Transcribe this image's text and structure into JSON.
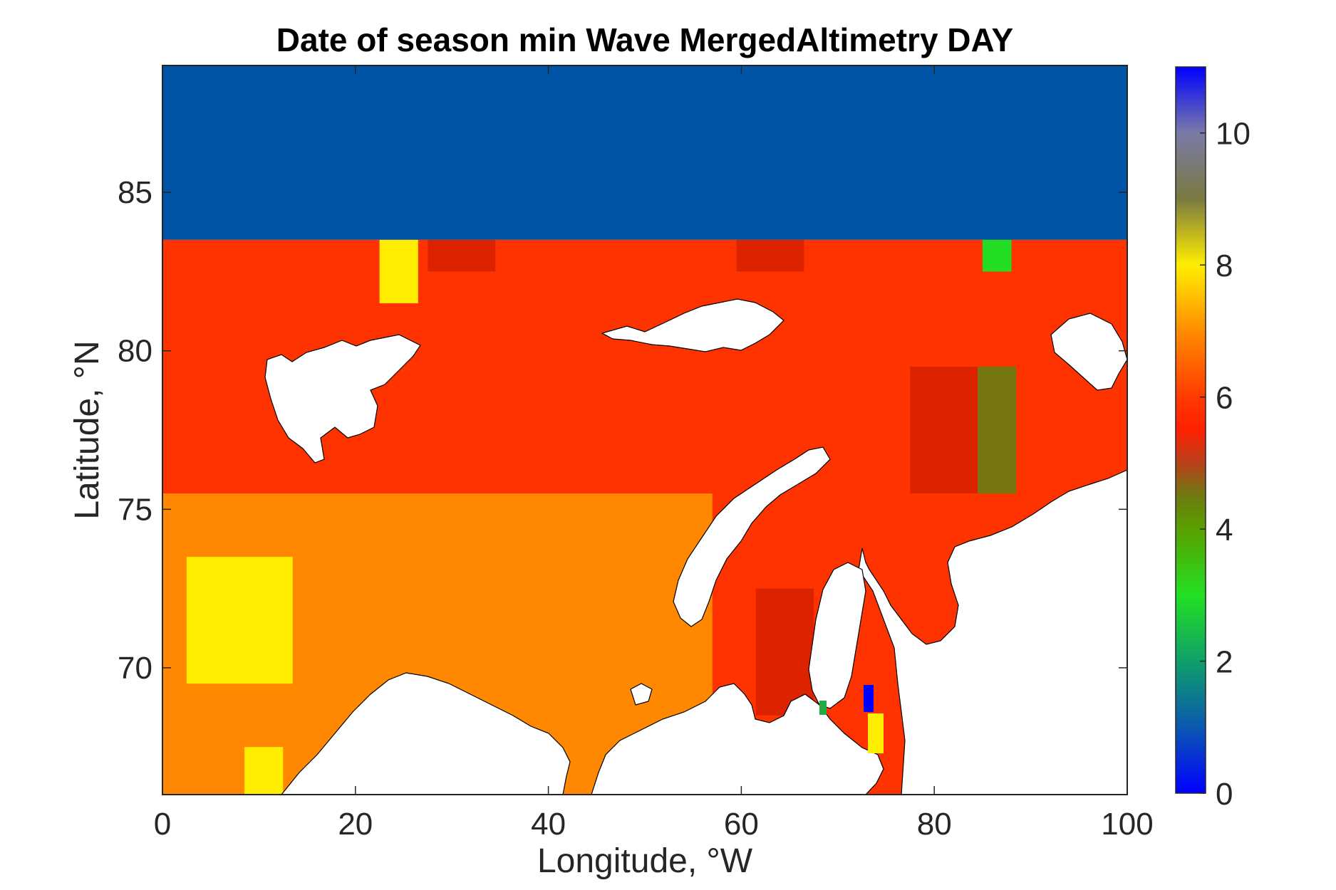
{
  "chart_data": {
    "type": "heatmap",
    "title": "Date of season min Wave MergedAltimetry DAY",
    "xlabel": "Longitude, °W",
    "ylabel": "Latitude, °N",
    "xlim": [
      0,
      100
    ],
    "ylim": [
      66,
      89
    ],
    "x_ticks": [
      0,
      20,
      40,
      60,
      80,
      100
    ],
    "y_ticks": [
      70,
      75,
      80,
      85
    ],
    "colorbar": {
      "range": [
        0,
        11
      ],
      "ticks": [
        0,
        2,
        4,
        6,
        8,
        10
      ],
      "stops": [
        {
          "value": 0,
          "color": "#0000ff"
        },
        {
          "value": 1,
          "color": "#0a58b0"
        },
        {
          "value": 2,
          "color": "#0fa068"
        },
        {
          "value": 3,
          "color": "#22e022"
        },
        {
          "value": 4,
          "color": "#5aa000"
        },
        {
          "value": 4.5,
          "color": "#6e7a10"
        },
        {
          "value": 5,
          "color": "#b8401a"
        },
        {
          "value": 5.5,
          "color": "#ff2000"
        },
        {
          "value": 6,
          "color": "#ff3a00"
        },
        {
          "value": 7,
          "color": "#ff8c00"
        },
        {
          "value": 8,
          "color": "#ffee00"
        },
        {
          "value": 9,
          "color": "#7a7a40"
        },
        {
          "value": 10,
          "color": "#7a7aa8"
        },
        {
          "value": 11,
          "color": "#0000ff"
        }
      ]
    },
    "regions": [
      {
        "name": "north-band",
        "value": 1,
        "color": "#0054a8",
        "x": [
          0,
          100
        ],
        "y": [
          83.5,
          89
        ]
      },
      {
        "name": "central-sea",
        "value": 6,
        "color": "#ff3300",
        "x": [
          0,
          100
        ],
        "y": [
          66,
          83.5
        ]
      },
      {
        "name": "southwest-sea",
        "value": 7,
        "color": "#ff8800",
        "x": [
          0,
          57
        ],
        "y": [
          66,
          75.5
        ]
      },
      {
        "name": "southwest-patch",
        "value": 8,
        "color": "#ffee00",
        "x": [
          2.5,
          13.5
        ],
        "y": [
          69.5,
          73.5
        ]
      },
      {
        "name": "south-patch",
        "value": 8,
        "color": "#ffee00",
        "x": [
          8.5,
          12.5
        ],
        "y": [
          66,
          67.5
        ]
      },
      {
        "name": "north-patch",
        "value": 8,
        "color": "#ffee00",
        "x": [
          22.5,
          26.5
        ],
        "y": [
          81.5,
          83.5
        ]
      },
      {
        "name": "north-east-patch",
        "value": 3,
        "color": "#22dd22",
        "x": [
          85,
          88
        ],
        "y": [
          82.5,
          83.5
        ]
      },
      {
        "name": "east-olive",
        "value": 4.5,
        "color": "#777711",
        "x": [
          81.5,
          88.5
        ],
        "y": [
          75.5,
          79.5
        ]
      },
      {
        "name": "dark-red-1",
        "value": 5.5,
        "color": "#dd2200",
        "x": [
          27.5,
          34.5
        ],
        "y": [
          82.5,
          83.5
        ]
      },
      {
        "name": "dark-red-2",
        "value": 5.5,
        "color": "#dd2200",
        "x": [
          59.5,
          66.5
        ],
        "y": [
          82.5,
          83.5
        ]
      },
      {
        "name": "dark-red-3",
        "value": 5.5,
        "color": "#dd2200",
        "x": [
          77.5,
          84.5
        ],
        "y": [
          75.5,
          79.5
        ]
      },
      {
        "name": "dark-red-4",
        "value": 5.5,
        "color": "#dd2200",
        "x": [
          61.5,
          67.5
        ],
        "y": [
          68.5,
          72.5
        ]
      }
    ],
    "grid": false,
    "legend": "colorbar-right"
  }
}
